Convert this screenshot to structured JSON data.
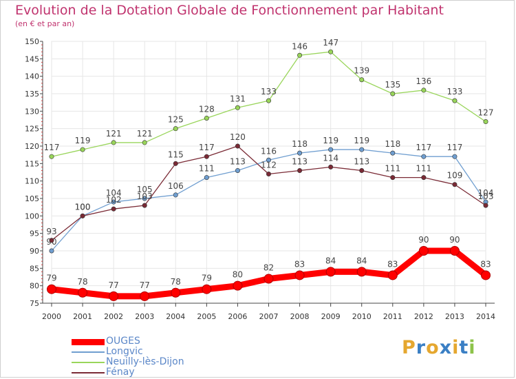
{
  "title": "Evolution de la Dotation Globale de Fonctionnement par Habitant",
  "subtitle": "(en € et par an)",
  "brand": {
    "text": "Proxiti",
    "colors": [
      "#e5a72f",
      "#3a7fc4",
      "#e5a72f",
      "#3a7fc4",
      "#e5a72f",
      "#3a7fc4",
      "#8dc34a"
    ]
  },
  "chart_data": {
    "type": "line",
    "title": "Evolution de la Dotation Globale de Fonctionnement par Habitant",
    "subtitle": "(en € et par an)",
    "x": [
      "2000",
      "2001",
      "2002",
      "2003",
      "2004",
      "2005",
      "2006",
      "2007",
      "2008",
      "2009",
      "2010",
      "2011",
      "2012",
      "2013",
      "2014"
    ],
    "ylim": [
      75,
      150
    ],
    "yticks": [
      75,
      80,
      85,
      90,
      95,
      100,
      105,
      110,
      115,
      120,
      125,
      130,
      135,
      140,
      145,
      150
    ],
    "grid": true,
    "legend_position": "bottom-left",
    "series": [
      {
        "name": "OUGES",
        "color": "#ff0000",
        "emphasis": true,
        "values": [
          79,
          78,
          77,
          77,
          78,
          79,
          80,
          82,
          83,
          84,
          84,
          83,
          90,
          90,
          83
        ]
      },
      {
        "name": "Longvic",
        "color": "#6f9ed0",
        "emphasis": false,
        "values": [
          90,
          100,
          104,
          105,
          106,
          111,
          113,
          116,
          118,
          119,
          119,
          118,
          117,
          117,
          104
        ]
      },
      {
        "name": "Neuilly-lès-Dijon",
        "color": "#99d55a",
        "emphasis": false,
        "values": [
          117,
          119,
          121,
          121,
          125,
          128,
          131,
          133,
          146,
          147,
          139,
          135,
          136,
          133,
          127
        ]
      },
      {
        "name": "Fénay",
        "color": "#7a2a35",
        "emphasis": false,
        "values": [
          93,
          100,
          102,
          103,
          115,
          117,
          120,
          112,
          113,
          114,
          113,
          111,
          111,
          109,
          103
        ]
      }
    ]
  }
}
